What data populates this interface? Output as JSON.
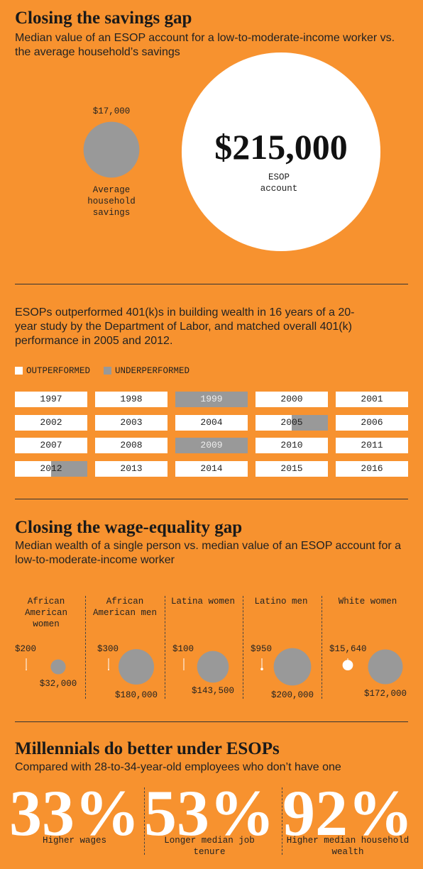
{
  "savings_gap": {
    "title": "Closing the savings gap",
    "subtitle": "Median value of an ESOP account for a low-to-moderate-income worker vs. the average household’s savings",
    "household": {
      "value": 17000,
      "label": "$17,000",
      "caption": "Average household savings"
    },
    "esop": {
      "value": 215000,
      "label": "$215,000",
      "caption": "ESOP account"
    }
  },
  "performance": {
    "text": "ESOPs outperformed 401(k)s in building wealth in 16 years of a 20-year study by the Department of Labor, and matched overall 401(k) performance in 2005 and 2012.",
    "legend": {
      "outperformed": "OUTPERFORMED",
      "underperformed": "UNDERPERFORMED"
    },
    "years": [
      {
        "year": "1997",
        "underperformed": 0
      },
      {
        "year": "1998",
        "underperformed": 0
      },
      {
        "year": "1999",
        "underperformed": 1
      },
      {
        "year": "2000",
        "underperformed": 0
      },
      {
        "year": "2001",
        "underperformed": 0
      },
      {
        "year": "2002",
        "underperformed": 0
      },
      {
        "year": "2003",
        "underperformed": 0
      },
      {
        "year": "2004",
        "underperformed": 0
      },
      {
        "year": "2005",
        "underperformed": 0.5
      },
      {
        "year": "2006",
        "underperformed": 0
      },
      {
        "year": "2007",
        "underperformed": 0
      },
      {
        "year": "2008",
        "underperformed": 0
      },
      {
        "year": "2009",
        "underperformed": 1
      },
      {
        "year": "2010",
        "underperformed": 0
      },
      {
        "year": "2011",
        "underperformed": 0
      },
      {
        "year": "2012",
        "underperformed": 0.5
      },
      {
        "year": "2013",
        "underperformed": 0
      },
      {
        "year": "2014",
        "underperformed": 0
      },
      {
        "year": "2015",
        "underperformed": 0
      },
      {
        "year": "2016",
        "underperformed": 0
      }
    ]
  },
  "wage_gap": {
    "title": "Closing the wage-equality gap",
    "subtitle": "Median wealth of a single person vs. median value of an ESOP account for a low-to-moderate-income worker",
    "groups": [
      {
        "name": "African American women",
        "single": {
          "value": 200,
          "label": "$200"
        },
        "esop": {
          "value": 32000,
          "label": "$32,000"
        }
      },
      {
        "name": "African American men",
        "single": {
          "value": 300,
          "label": "$300"
        },
        "esop": {
          "value": 180000,
          "label": "$180,000"
        }
      },
      {
        "name": "Latina women",
        "single": {
          "value": 100,
          "label": "$100"
        },
        "esop": {
          "value": 143500,
          "label": "$143,500"
        }
      },
      {
        "name": "Latino men",
        "single": {
          "value": 950,
          "label": "$950"
        },
        "esop": {
          "value": 200000,
          "label": "$200,000"
        }
      },
      {
        "name": "White women",
        "single": {
          "value": 15640,
          "label": "$15,640"
        },
        "esop": {
          "value": 172000,
          "label": "$172,000"
        }
      }
    ]
  },
  "millennials": {
    "title": "Millennials do better under ESOPs",
    "subtitle": "Compared with 28-to-34-year-old employees who don’t have one",
    "stats": [
      {
        "value": "33%",
        "caption": "Higher wages"
      },
      {
        "value": "53%",
        "caption": "Longer median job tenure"
      },
      {
        "value": "92%",
        "caption": "Higher median household wealth"
      }
    ]
  }
}
